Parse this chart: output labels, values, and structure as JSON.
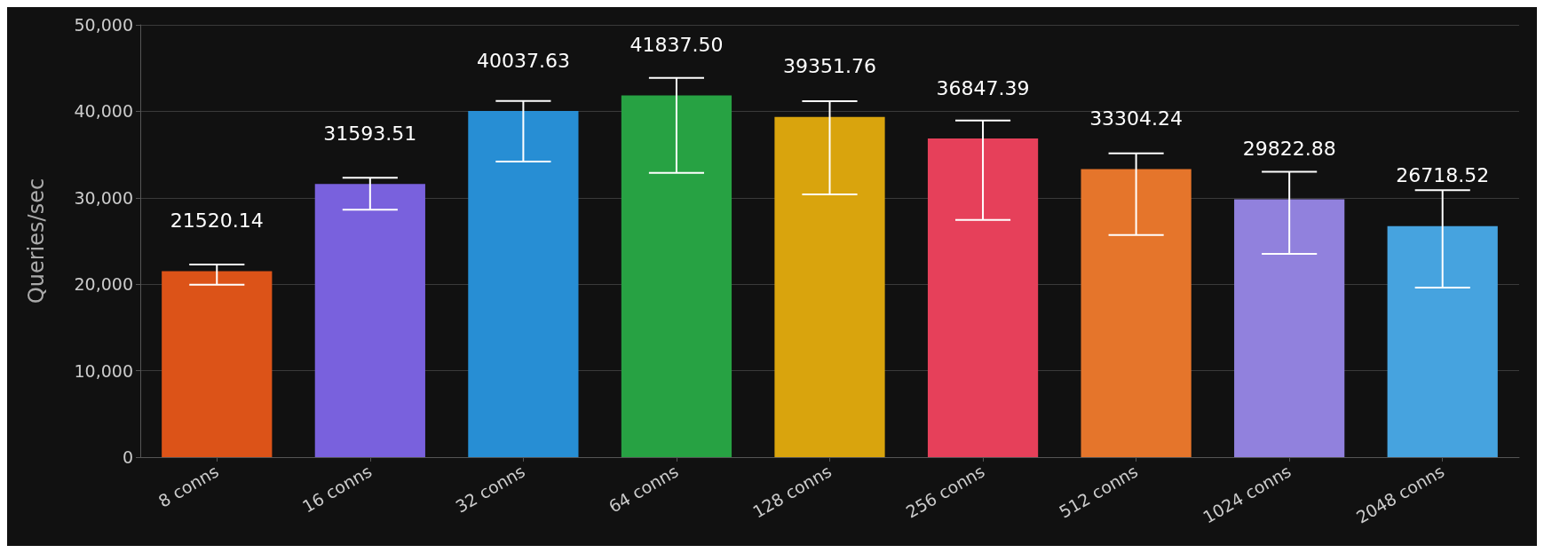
{
  "chart_data": {
    "type": "bar",
    "ylabel": "Queries/sec",
    "categories": [
      "8 conns",
      "16 conns",
      "32 conns",
      "64 conns",
      "128 conns",
      "256 conns",
      "512 conns",
      "1024 conns",
      "2048 conns"
    ],
    "values": [
      21520.14,
      31593.51,
      40037.63,
      41837.5,
      39351.76,
      36847.39,
      33304.24,
      29822.88,
      26718.52
    ],
    "colors": [
      "#dc5318",
      "#7961dd",
      "#278ed4",
      "#27a243",
      "#d9a40d",
      "#e6405a",
      "#e5752b",
      "#9181dd",
      "#46a3df"
    ],
    "errors": [
      [
        19950,
        22270
      ],
      [
        28610,
        32320
      ],
      [
        34180,
        41190
      ],
      [
        32890,
        43870
      ],
      [
        30390,
        41170
      ],
      [
        27430,
        38940
      ],
      [
        25700,
        35140
      ],
      [
        23520,
        33020
      ],
      [
        19610,
        30890
      ]
    ],
    "value_labels": [
      "21520.14",
      "31593.51",
      "40037.63",
      "41837.50",
      "39351.76",
      "36847.39",
      "33304.24",
      "29822.88",
      "26718.52"
    ],
    "ylim": [
      0,
      50000
    ],
    "yticks": [
      0,
      {
        "value": 10000,
        "label": "10,000"
      },
      {
        "value": 20000,
        "label": "20,000"
      },
      {
        "value": 30000,
        "label": "30,000"
      },
      {
        "value": 40000,
        "label": "40,000"
      },
      {
        "value": 50000,
        "label": "50,000"
      }
    ],
    "grid": "y"
  }
}
